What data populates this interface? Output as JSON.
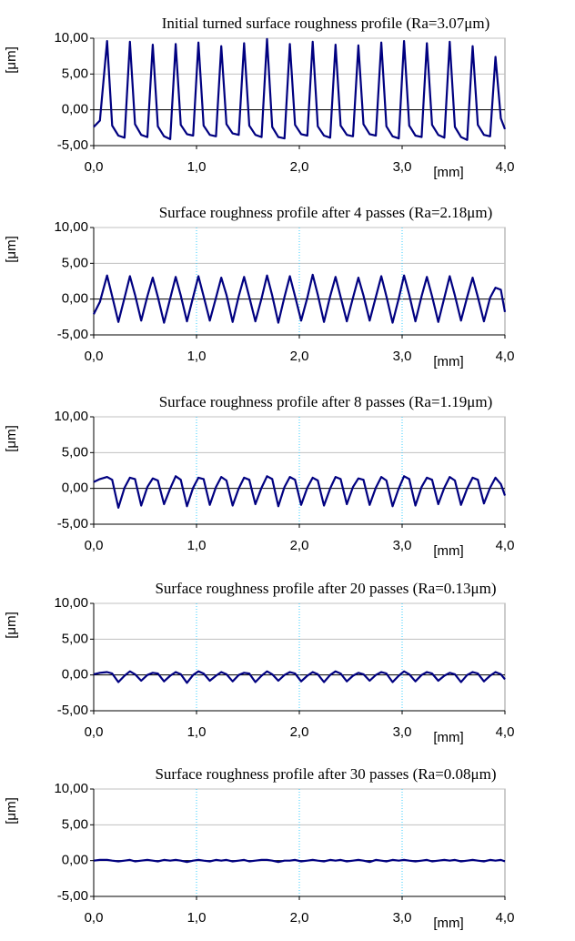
{
  "chart_data": [
    {
      "type": "line",
      "title": "Initial turned surface roughness profile (Ra=3.07μm)",
      "xlabel": "[mm]",
      "ylabel": "[μm]",
      "grid": false,
      "xlim": [
        0,
        4
      ],
      "ylim": [
        -5,
        10
      ],
      "xticks": [
        {
          "value": 0,
          "label": "0,0"
        },
        {
          "value": 1,
          "label": "1,0"
        },
        {
          "value": 2,
          "label": "2,0"
        },
        {
          "value": 3,
          "label": "3,0"
        },
        {
          "value": 4,
          "label": "4,0"
        }
      ],
      "yticks": [
        {
          "value": -5,
          "label": "-5,00"
        },
        {
          "value": 0,
          "label": "0,00"
        },
        {
          "value": 5,
          "label": "5,00"
        },
        {
          "value": 10,
          "label": "10,00"
        }
      ],
      "x": [
        0,
        0.06,
        0.13,
        0.18,
        0.24,
        0.3,
        0.352,
        0.402,
        0.462,
        0.522,
        0.574,
        0.624,
        0.684,
        0.744,
        0.797,
        0.847,
        0.907,
        0.967,
        1.019,
        1.069,
        1.129,
        1.189,
        1.241,
        1.291,
        1.351,
        1.411,
        1.463,
        1.513,
        1.573,
        1.633,
        1.686,
        1.736,
        1.796,
        1.856,
        1.908,
        1.958,
        2.018,
        2.078,
        2.13,
        2.18,
        2.24,
        2.3,
        2.352,
        2.402,
        2.462,
        2.522,
        2.574,
        2.624,
        2.684,
        2.744,
        2.797,
        2.847,
        2.907,
        2.967,
        3.019,
        3.069,
        3.129,
        3.189,
        3.241,
        3.291,
        3.351,
        3.411,
        3.463,
        3.513,
        3.573,
        3.633,
        3.686,
        3.736,
        3.796,
        3.856,
        3.908,
        3.96,
        4.0
      ],
      "series": [
        {
          "color": "#000080",
          "values": [
            -2.4,
            -1.5,
            9.6,
            -2.2,
            -3.6,
            -3.9,
            9.5,
            -2.0,
            -3.5,
            -3.8,
            9.1,
            -2.3,
            -3.7,
            -4.1,
            9.2,
            -2.1,
            -3.4,
            -3.6,
            9.4,
            -2.2,
            -3.5,
            -3.7,
            8.9,
            -2.0,
            -3.3,
            -3.5,
            9.3,
            -2.2,
            -3.5,
            -3.8,
            9.9,
            -2.4,
            -3.8,
            -4.0,
            9.2,
            -2.1,
            -3.4,
            -3.6,
            9.5,
            -2.3,
            -3.6,
            -3.9,
            9.1,
            -2.2,
            -3.5,
            -3.7,
            9.0,
            -2.0,
            -3.4,
            -3.6,
            9.4,
            -2.3,
            -3.7,
            -4.0,
            9.6,
            -2.2,
            -3.6,
            -3.8,
            9.3,
            -2.1,
            -3.5,
            -3.9,
            9.5,
            -2.4,
            -3.8,
            -4.2,
            8.9,
            -2.1,
            -3.5,
            -3.7,
            7.4,
            -1.2,
            -2.7
          ]
        }
      ]
    },
    {
      "type": "line",
      "title": "Surface roughness profile after 4 passes (Ra=2.18μm)",
      "xlabel": "[mm]",
      "ylabel": "[μm]",
      "grid": true,
      "xlim": [
        0,
        4
      ],
      "ylim": [
        -5,
        10
      ],
      "xticks": [
        {
          "value": 0,
          "label": "0,0"
        },
        {
          "value": 1,
          "label": "1,0"
        },
        {
          "value": 2,
          "label": "2,0"
        },
        {
          "value": 3,
          "label": "3,0"
        },
        {
          "value": 4,
          "label": "4,0"
        }
      ],
      "yticks": [
        {
          "value": -5,
          "label": "-5,00"
        },
        {
          "value": 0,
          "label": "0,00"
        },
        {
          "value": 5,
          "label": "5,00"
        },
        {
          "value": 10,
          "label": "10,00"
        }
      ],
      "x": [
        0,
        0.06,
        0.13,
        0.18,
        0.24,
        0.3,
        0.352,
        0.402,
        0.462,
        0.522,
        0.574,
        0.624,
        0.684,
        0.744,
        0.797,
        0.847,
        0.907,
        0.967,
        1.019,
        1.069,
        1.129,
        1.189,
        1.241,
        1.291,
        1.351,
        1.411,
        1.463,
        1.513,
        1.573,
        1.633,
        1.686,
        1.736,
        1.796,
        1.856,
        1.908,
        1.958,
        2.018,
        2.078,
        2.13,
        2.18,
        2.24,
        2.3,
        2.352,
        2.402,
        2.462,
        2.522,
        2.574,
        2.624,
        2.684,
        2.744,
        2.797,
        2.847,
        2.907,
        2.967,
        3.019,
        3.069,
        3.129,
        3.189,
        3.241,
        3.291,
        3.351,
        3.411,
        3.463,
        3.513,
        3.573,
        3.633,
        3.686,
        3.736,
        3.796,
        3.856,
        3.908,
        3.96,
        4.0
      ],
      "series": [
        {
          "color": "#000080",
          "values": [
            -2.1,
            -0.4,
            3.3,
            0.4,
            -3.2,
            0.2,
            3.2,
            0.6,
            -3.0,
            0.4,
            3.0,
            0.3,
            -3.3,
            0.1,
            3.1,
            0.5,
            -3.1,
            0.3,
            3.2,
            0.4,
            -3.0,
            0.2,
            3.0,
            0.6,
            -3.2,
            0.4,
            3.1,
            0.3,
            -3.1,
            0.1,
            3.3,
            0.5,
            -3.3,
            0.3,
            3.2,
            0.4,
            -3.0,
            0.2,
            3.4,
            0.6,
            -3.2,
            0.4,
            3.1,
            0.3,
            -3.1,
            0.2,
            3.0,
            0.5,
            -3.0,
            0.3,
            3.2,
            0.4,
            -3.3,
            0.1,
            3.3,
            0.6,
            -3.1,
            0.4,
            3.1,
            0.4,
            -3.2,
            0.2,
            3.2,
            0.5,
            -3.0,
            0.3,
            3.0,
            0.3,
            -3.1,
            0.2,
            1.6,
            1.3,
            -1.8
          ]
        }
      ]
    },
    {
      "type": "line",
      "title": "Surface roughness profile after 8 passes (Ra=1.19μm)",
      "xlabel": "[mm]",
      "ylabel": "[μm]",
      "grid": true,
      "xlim": [
        0,
        4
      ],
      "ylim": [
        -5,
        10
      ],
      "xticks": [
        {
          "value": 0,
          "label": "0,0"
        },
        {
          "value": 1,
          "label": "1,0"
        },
        {
          "value": 2,
          "label": "2,0"
        },
        {
          "value": 3,
          "label": "3,0"
        },
        {
          "value": 4,
          "label": "4,0"
        }
      ],
      "yticks": [
        {
          "value": -5,
          "label": "-5,00"
        },
        {
          "value": 0,
          "label": "0,00"
        },
        {
          "value": 5,
          "label": "5,00"
        },
        {
          "value": 10,
          "label": "10,00"
        }
      ],
      "x": [
        0,
        0.06,
        0.13,
        0.18,
        0.24,
        0.3,
        0.352,
        0.402,
        0.462,
        0.522,
        0.574,
        0.624,
        0.684,
        0.744,
        0.797,
        0.847,
        0.907,
        0.967,
        1.019,
        1.069,
        1.129,
        1.189,
        1.241,
        1.291,
        1.351,
        1.411,
        1.463,
        1.513,
        1.573,
        1.633,
        1.686,
        1.736,
        1.796,
        1.856,
        1.908,
        1.958,
        2.018,
        2.078,
        2.13,
        2.18,
        2.24,
        2.3,
        2.352,
        2.402,
        2.462,
        2.522,
        2.574,
        2.624,
        2.684,
        2.744,
        2.797,
        2.847,
        2.907,
        2.967,
        3.019,
        3.069,
        3.129,
        3.189,
        3.241,
        3.291,
        3.351,
        3.411,
        3.463,
        3.513,
        3.573,
        3.633,
        3.686,
        3.736,
        3.796,
        3.856,
        3.908,
        3.96,
        4.0
      ],
      "series": [
        {
          "color": "#000080",
          "values": [
            0.9,
            1.3,
            1.6,
            1.2,
            -2.7,
            0.1,
            1.5,
            1.3,
            -2.4,
            0.2,
            1.4,
            1.1,
            -2.2,
            0.0,
            1.7,
            1.2,
            -2.5,
            0.1,
            1.5,
            1.3,
            -2.3,
            0.2,
            1.6,
            1.1,
            -2.4,
            0.0,
            1.5,
            1.2,
            -2.2,
            0.1,
            1.7,
            1.3,
            -2.5,
            0.2,
            1.6,
            1.2,
            -2.3,
            0.1,
            1.5,
            1.1,
            -2.4,
            0.0,
            1.6,
            1.3,
            -2.2,
            0.2,
            1.4,
            1.2,
            -2.3,
            0.1,
            1.6,
            1.1,
            -2.5,
            0.0,
            1.7,
            1.3,
            -2.4,
            0.2,
            1.5,
            1.2,
            -2.2,
            0.1,
            1.6,
            1.1,
            -2.3,
            0.0,
            1.5,
            1.2,
            -2.1,
            0.1,
            1.5,
            0.6,
            -1.0
          ]
        }
      ]
    },
    {
      "type": "line",
      "title": "Surface roughness profile after 20 passes (Ra=0.13μm)",
      "xlabel": "[mm]",
      "ylabel": "[μm]",
      "grid": true,
      "xlim": [
        0,
        4
      ],
      "ylim": [
        -5,
        10
      ],
      "xticks": [
        {
          "value": 0,
          "label": "0,0"
        },
        {
          "value": 1,
          "label": "1,0"
        },
        {
          "value": 2,
          "label": "2,0"
        },
        {
          "value": 3,
          "label": "3,0"
        },
        {
          "value": 4,
          "label": "4,0"
        }
      ],
      "yticks": [
        {
          "value": -5,
          "label": "-5,00"
        },
        {
          "value": 0,
          "label": "0,00"
        },
        {
          "value": 5,
          "label": "5,00"
        },
        {
          "value": 10,
          "label": "10,00"
        }
      ],
      "x": [
        0,
        0.06,
        0.13,
        0.18,
        0.24,
        0.3,
        0.352,
        0.402,
        0.462,
        0.522,
        0.574,
        0.624,
        0.684,
        0.744,
        0.797,
        0.847,
        0.907,
        0.967,
        1.019,
        1.069,
        1.129,
        1.189,
        1.241,
        1.291,
        1.351,
        1.411,
        1.463,
        1.513,
        1.573,
        1.633,
        1.686,
        1.736,
        1.796,
        1.856,
        1.908,
        1.958,
        2.018,
        2.078,
        2.13,
        2.18,
        2.24,
        2.3,
        2.352,
        2.402,
        2.462,
        2.522,
        2.574,
        2.624,
        2.684,
        2.744,
        2.797,
        2.847,
        2.907,
        2.967,
        3.019,
        3.069,
        3.129,
        3.189,
        3.241,
        3.291,
        3.351,
        3.411,
        3.463,
        3.513,
        3.573,
        3.633,
        3.686,
        3.736,
        3.796,
        3.856,
        3.908,
        3.96,
        4.0
      ],
      "series": [
        {
          "color": "#000080",
          "values": [
            0.1,
            0.3,
            0.4,
            0.2,
            -1.0,
            -0.1,
            0.5,
            0.1,
            -0.8,
            0.0,
            0.3,
            0.2,
            -0.9,
            -0.1,
            0.4,
            0.1,
            -1.1,
            0.0,
            0.5,
            0.2,
            -0.8,
            -0.1,
            0.4,
            0.1,
            -0.9,
            0.0,
            0.3,
            0.2,
            -1.0,
            -0.1,
            0.5,
            0.1,
            -0.8,
            0.0,
            0.4,
            0.2,
            -0.9,
            -0.1,
            0.4,
            0.1,
            -1.0,
            0.0,
            0.5,
            0.2,
            -0.9,
            -0.1,
            0.3,
            0.1,
            -0.8,
            0.0,
            0.4,
            0.2,
            -1.0,
            -0.1,
            0.5,
            0.1,
            -0.9,
            0.0,
            0.4,
            0.2,
            -0.8,
            -0.1,
            0.3,
            0.1,
            -1.0,
            0.0,
            0.4,
            0.2,
            -0.9,
            -0.1,
            0.4,
            0.1,
            -0.6
          ]
        }
      ]
    },
    {
      "type": "line",
      "title": "Surface roughness profile after 30 passes (Ra=0.08μm)",
      "xlabel": "[mm]",
      "ylabel": "[μm]",
      "grid": true,
      "xlim": [
        0,
        4
      ],
      "ylim": [
        -5,
        10
      ],
      "xticks": [
        {
          "value": 0,
          "label": "0,0"
        },
        {
          "value": 1,
          "label": "1,0"
        },
        {
          "value": 2,
          "label": "2,0"
        },
        {
          "value": 3,
          "label": "3,0"
        },
        {
          "value": 4,
          "label": "4,0"
        }
      ],
      "yticks": [
        {
          "value": -5,
          "label": "-5,00"
        },
        {
          "value": 0,
          "label": "0,00"
        },
        {
          "value": 5,
          "label": "5,00"
        },
        {
          "value": 10,
          "label": "10,00"
        }
      ],
      "x": [
        0,
        0.06,
        0.13,
        0.18,
        0.24,
        0.3,
        0.352,
        0.402,
        0.462,
        0.522,
        0.574,
        0.624,
        0.684,
        0.744,
        0.797,
        0.847,
        0.907,
        0.967,
        1.019,
        1.069,
        1.129,
        1.189,
        1.241,
        1.291,
        1.351,
        1.411,
        1.463,
        1.513,
        1.573,
        1.633,
        1.686,
        1.736,
        1.796,
        1.856,
        1.908,
        1.958,
        2.018,
        2.078,
        2.13,
        2.18,
        2.24,
        2.3,
        2.352,
        2.402,
        2.462,
        2.522,
        2.574,
        2.624,
        2.684,
        2.744,
        2.797,
        2.847,
        2.907,
        2.967,
        3.019,
        3.069,
        3.129,
        3.189,
        3.241,
        3.291,
        3.351,
        3.411,
        3.463,
        3.513,
        3.573,
        3.633,
        3.686,
        3.736,
        3.796,
        3.856,
        3.908,
        3.96,
        4.0
      ],
      "series": [
        {
          "color": "#000080",
          "values": [
            0.0,
            0.1,
            0.1,
            0.0,
            -0.1,
            0.0,
            0.1,
            -0.1,
            0.0,
            0.1,
            0.0,
            -0.1,
            0.1,
            0.0,
            0.1,
            0.0,
            -0.2,
            0.0,
            0.1,
            0.0,
            -0.1,
            0.1,
            0.0,
            0.1,
            -0.1,
            0.0,
            0.1,
            -0.1,
            0.0,
            0.1,
            0.1,
            0.0,
            -0.2,
            0.0,
            0.0,
            0.1,
            -0.1,
            0.0,
            0.1,
            0.0,
            -0.1,
            0.1,
            0.0,
            0.1,
            -0.1,
            0.0,
            0.1,
            0.0,
            -0.2,
            0.1,
            0.0,
            -0.1,
            0.1,
            0.0,
            0.1,
            0.0,
            -0.1,
            0.0,
            0.1,
            -0.1,
            0.0,
            0.1,
            0.0,
            0.1,
            -0.1,
            0.0,
            0.1,
            0.0,
            -0.1,
            0.1,
            0.0,
            0.1,
            -0.1
          ]
        }
      ]
    }
  ]
}
